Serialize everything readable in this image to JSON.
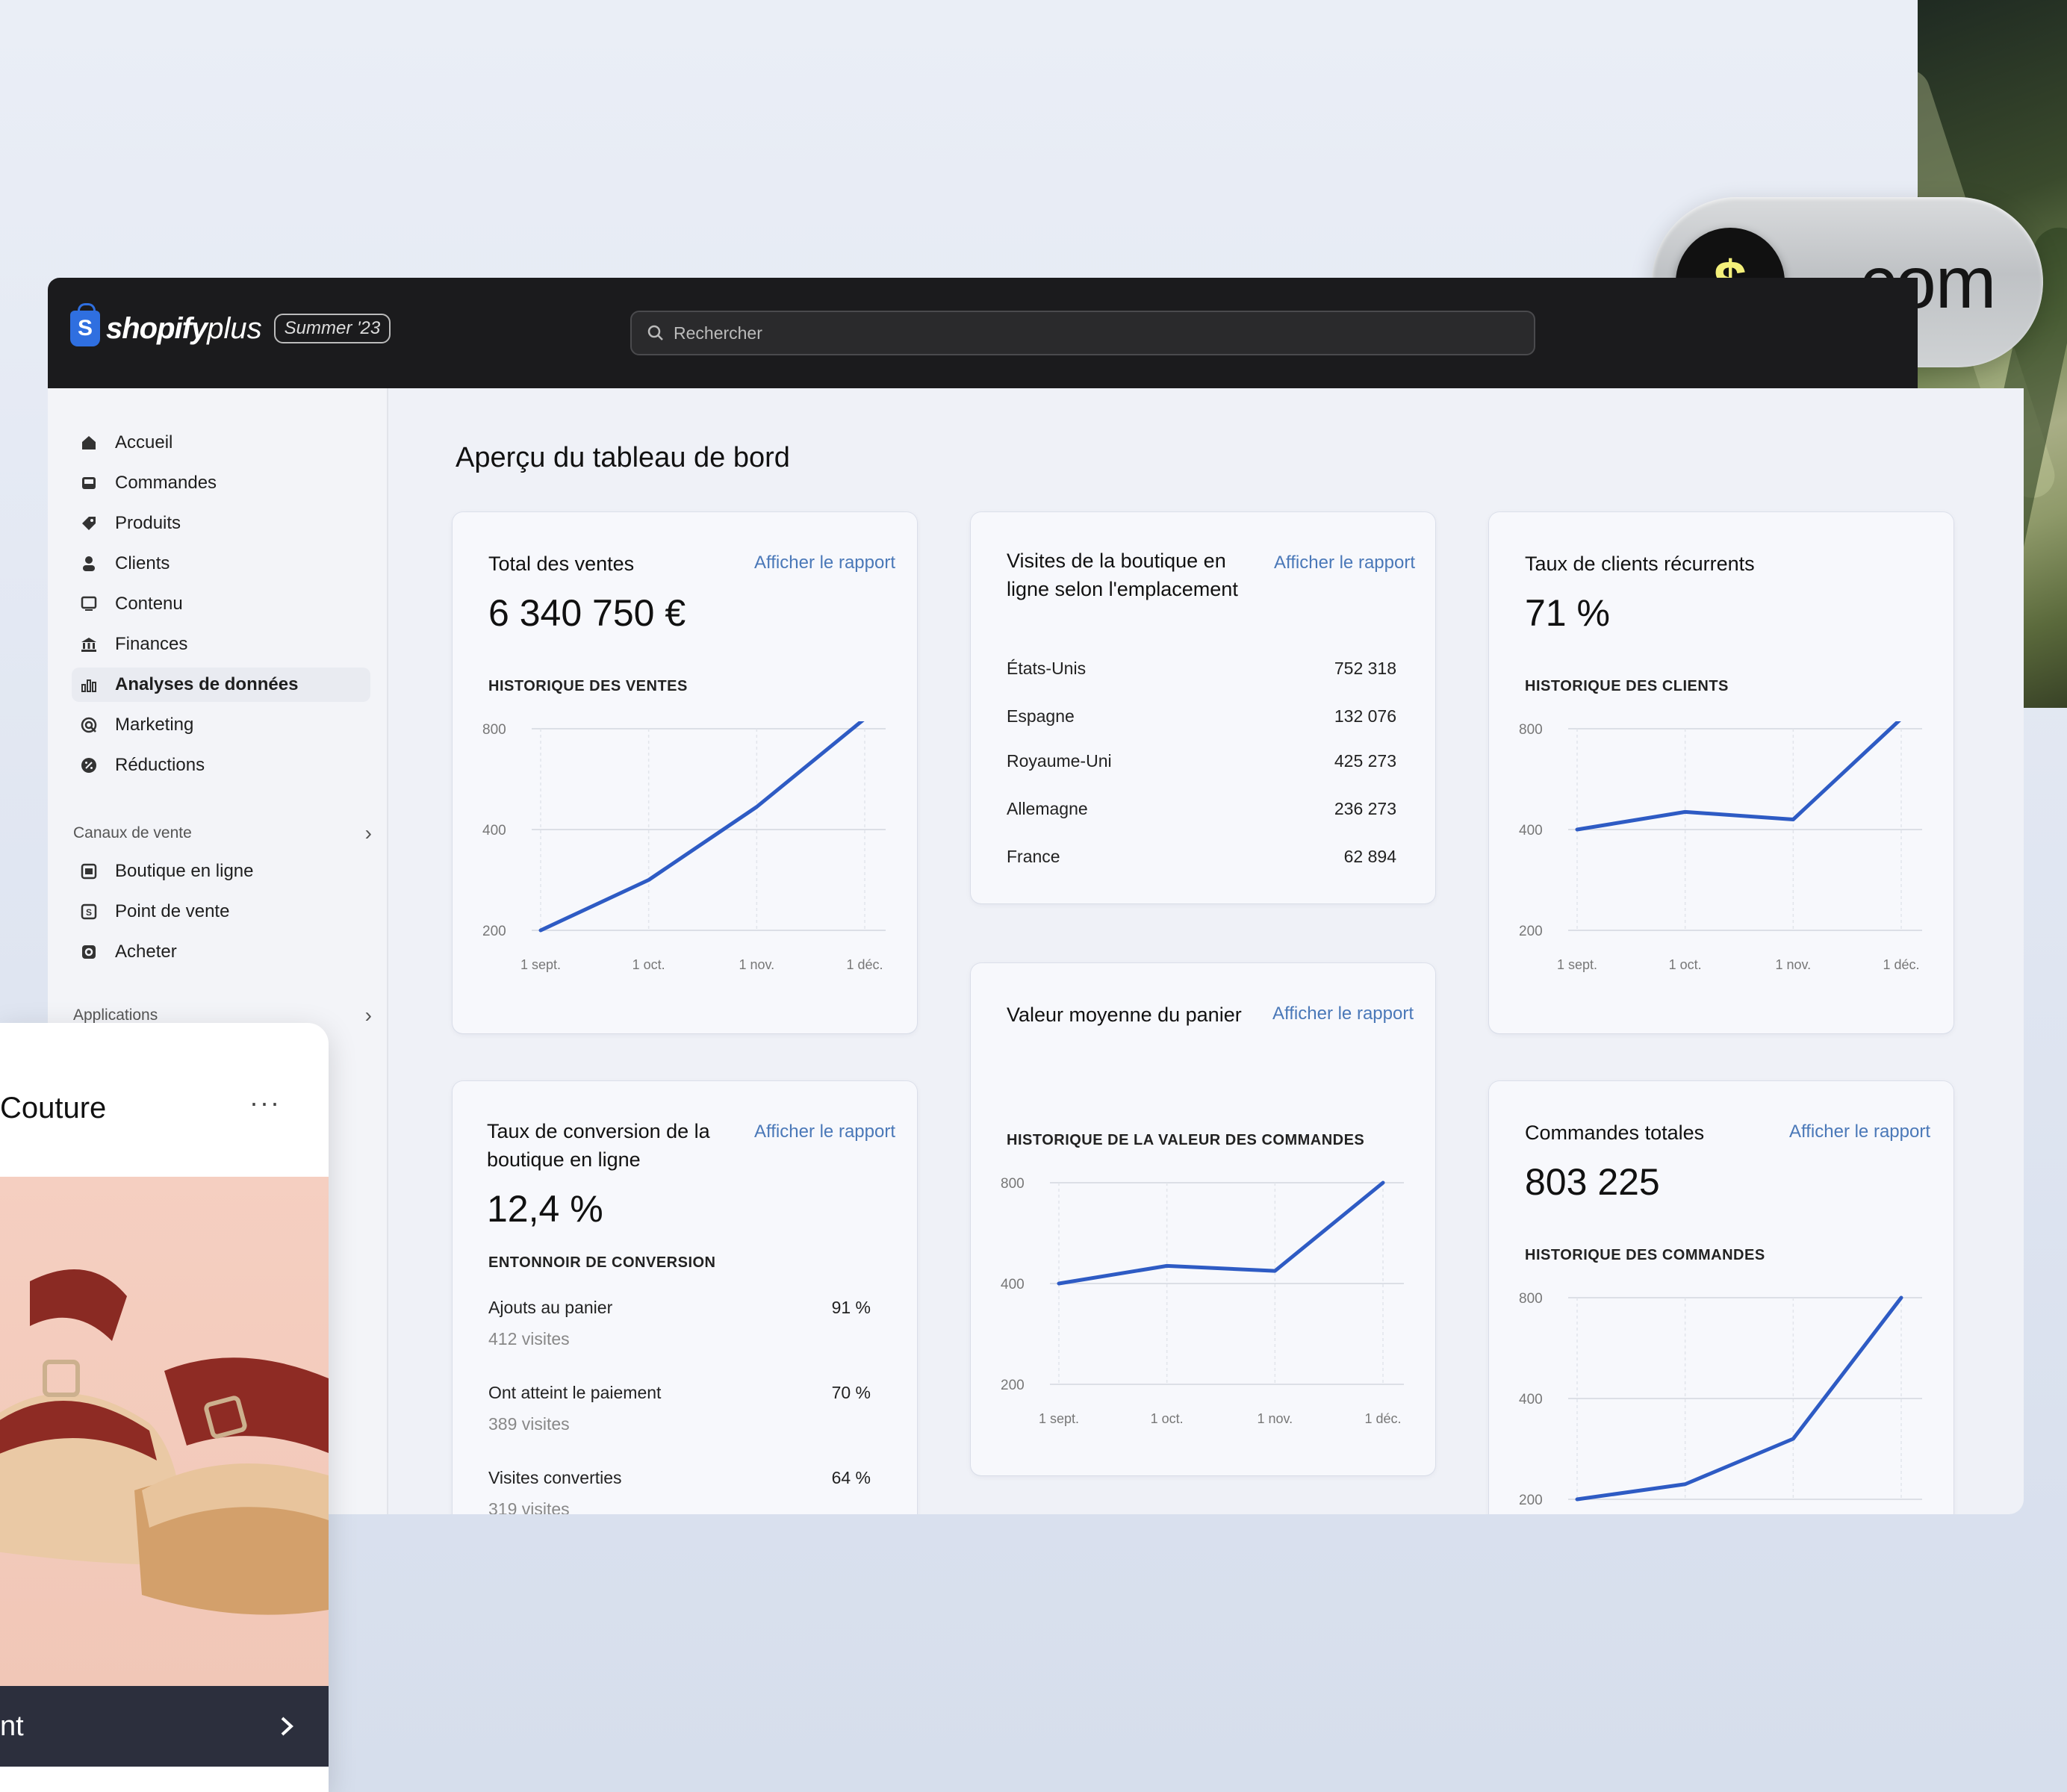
{
  "brand": {
    "name": "shopify",
    "suffix": "plus",
    "edition": "Summer '23"
  },
  "search": {
    "placeholder": "Rechercher"
  },
  "domain_pill": {
    "symbol": "$",
    "text": ".com"
  },
  "sidebar": {
    "items": [
      {
        "label": "Accueil",
        "icon": "home-icon"
      },
      {
        "label": "Commandes",
        "icon": "inbox-icon"
      },
      {
        "label": "Produits",
        "icon": "tag-icon"
      },
      {
        "label": "Clients",
        "icon": "person-icon"
      },
      {
        "label": "Contenu",
        "icon": "content-icon"
      },
      {
        "label": "Finances",
        "icon": "bank-icon"
      },
      {
        "label": "Analyses de données",
        "icon": "bar-chart-icon",
        "active": true
      },
      {
        "label": "Marketing",
        "icon": "target-icon"
      },
      {
        "label": "Réductions",
        "icon": "discount-icon"
      }
    ],
    "sales_channels": {
      "label": "Canaux de vente",
      "items": [
        {
          "label": "Boutique en ligne",
          "icon": "store-icon"
        },
        {
          "label": "Point de vente",
          "icon": "pos-icon"
        },
        {
          "label": "Acheter",
          "icon": "shop-icon"
        }
      ]
    },
    "apps": {
      "label": "Applications"
    }
  },
  "main": {
    "title": "Aperçu du tableau de bord"
  },
  "cards": {
    "sales": {
      "title": "Total des ventes",
      "link": "Afficher le rapport",
      "value": "6 340 750 €",
      "chart_label": "HISTORIQUE DES VENTES"
    },
    "visits": {
      "title_line1": "Visites de la boutique en",
      "title_line2": "ligne selon l'emplacement",
      "link": "Afficher le rapport",
      "rows": [
        {
          "country": "États-Unis",
          "value": "752 318"
        },
        {
          "country": "Espagne",
          "value": "132 076"
        },
        {
          "country": "Royaume-Uni",
          "value": "425 273"
        },
        {
          "country": "Allemagne",
          "value": "236 273"
        },
        {
          "country": "France",
          "value": "62 894"
        }
      ]
    },
    "returning": {
      "title": "Taux de clients récurrents",
      "value": "71 %",
      "chart_label": "HISTORIQUE DES CLIENTS"
    },
    "basket": {
      "title": "Valeur moyenne du panier",
      "link": "Afficher le rapport",
      "chart_label": "HISTORIQUE DE LA VALEUR DES COMMANDES"
    },
    "conversion": {
      "title_line1": "Taux de conversion de la",
      "title_line2": "boutique en ligne",
      "link": "Afficher le rapport",
      "value": "12,4 %",
      "funnel_label": "ENTONNOIR DE CONVERSION",
      "steps": [
        {
          "label": "Ajouts au panier",
          "pct": "91 %",
          "visits": "412 visites"
        },
        {
          "label": "Ont atteint le paiement",
          "pct": "70 %",
          "visits": "389 visites"
        },
        {
          "label": "Visites converties",
          "pct": "64 %",
          "visits": "319 visites"
        }
      ]
    },
    "orders": {
      "title": "Commandes totales",
      "link": "Afficher le rapport",
      "value": "803 225",
      "chart_label": "HISTORIQUE DES COMMANDES"
    }
  },
  "overlay": {
    "title": "Couture",
    "menu": "···",
    "button": "nt",
    "button_icon": "chevron-right-icon"
  },
  "colors": {
    "line": "#2e5bc4",
    "topbar": "#1b1b1d",
    "link": "#4a78b8"
  },
  "chart_data": [
    {
      "type": "line",
      "title": "HISTORIQUE DES VENTES",
      "x": [
        "1 sept.",
        "1 oct.",
        "1 nov.",
        "1 déc."
      ],
      "yticks": [
        200,
        400,
        800
      ],
      "series": [
        {
          "values": [
            200,
            300,
            490,
            840
          ]
        }
      ]
    },
    {
      "type": "line",
      "title": "HISTORIQUE DES CLIENTS",
      "x": [
        "1 sept.",
        "1 oct.",
        "1 nov.",
        "1 déc."
      ],
      "yticks": [
        200,
        400,
        800
      ],
      "series": [
        {
          "values": [
            400,
            470,
            440,
            840
          ]
        }
      ]
    },
    {
      "type": "line",
      "title": "HISTORIQUE DE LA VALEUR DES COMMANDES",
      "x": [
        "1 sept.",
        "1 oct.",
        "1 nov.",
        "1 déc."
      ],
      "yticks": [
        200,
        400,
        800
      ],
      "series": [
        {
          "values": [
            400,
            470,
            450,
            800
          ]
        }
      ]
    },
    {
      "type": "line",
      "title": "HISTORIQUE DES COMMANDES",
      "x": [
        "1 sept.",
        "1 oct.",
        "1 nov.",
        "1 déc."
      ],
      "yticks": [
        200,
        400,
        800
      ],
      "series": [
        {
          "values": [
            200,
            230,
            320,
            800
          ]
        }
      ]
    }
  ]
}
